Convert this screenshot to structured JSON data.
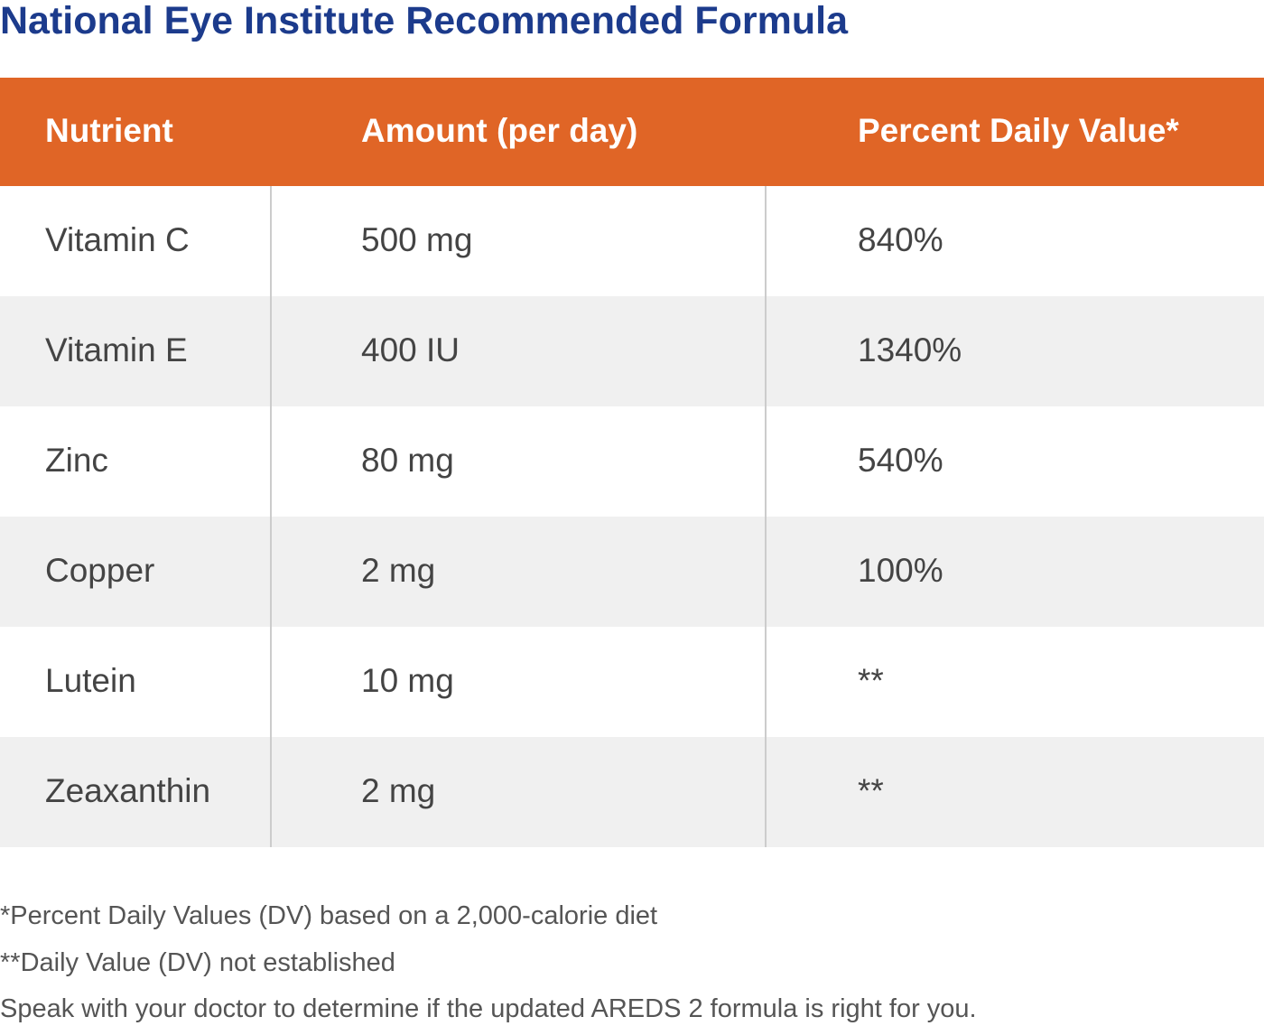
{
  "title": "National Eye Institute Recommended Formula",
  "table": {
    "headers": [
      "Nutrient",
      "Amount (per day)",
      "Percent Daily Value*"
    ],
    "rows": [
      [
        "Vitamin C",
        "500 mg",
        "840%"
      ],
      [
        "Vitamin E",
        "400 IU",
        "1340%"
      ],
      [
        "Zinc",
        "80 mg",
        "540%"
      ],
      [
        "Copper",
        "2 mg",
        "100%"
      ],
      [
        "Lutein",
        "10 mg",
        "**"
      ],
      [
        "Zeaxanthin",
        "2 mg",
        "**"
      ]
    ]
  },
  "notes": [
    "*Percent Daily Values (DV) based on a 2,000-calorie diet",
    "**Daily Value (DV) not established",
    "Speak with your doctor to determine if the updated AREDS 2 formula is right for you."
  ],
  "colors": {
    "title": "#1c3b8c",
    "header_bg": "#e06526",
    "row_shade": "#f0f0f0"
  }
}
